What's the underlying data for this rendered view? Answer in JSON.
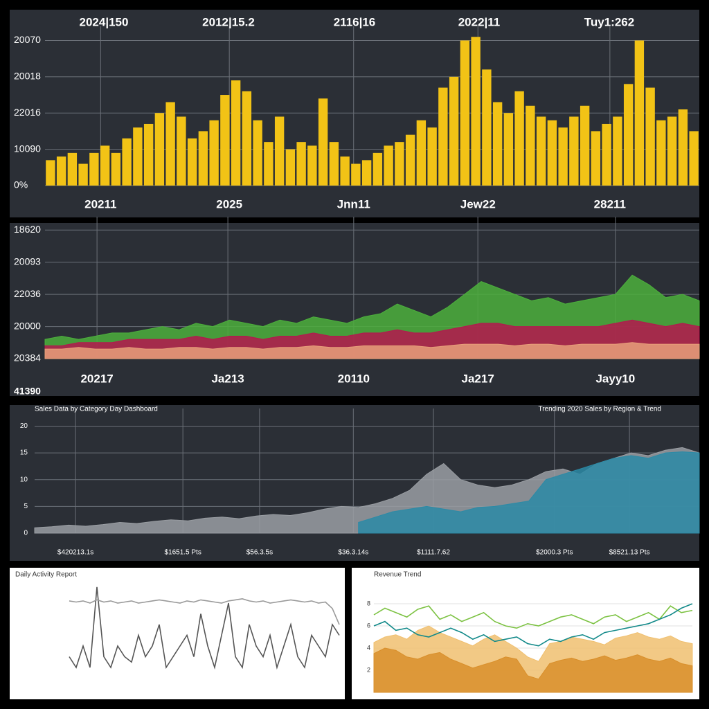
{
  "chart_data": [
    {
      "type": "bar",
      "color": "#f2c316",
      "grid": true,
      "annotations": [
        "2024|150",
        "2012|15.2",
        "2116|16",
        "2022|11",
        "Tuy1:262"
      ],
      "x": [
        0,
        1,
        2,
        3,
        4,
        5,
        6,
        7,
        8,
        9,
        10,
        11,
        12,
        13,
        14,
        15,
        16,
        17,
        18,
        19,
        20,
        21,
        22,
        23,
        24,
        25,
        26,
        27,
        28,
        29,
        30,
        31,
        32,
        33,
        34,
        35,
        36,
        37,
        38,
        39,
        40,
        41,
        42,
        43,
        44,
        45,
        46,
        47,
        48,
        49,
        50,
        51,
        52,
        53,
        54,
        55,
        56,
        57,
        58,
        59
      ],
      "values": [
        0.7,
        0.8,
        0.9,
        0.6,
        0.9,
        1.1,
        0.9,
        1.3,
        1.6,
        1.7,
        2.0,
        2.3,
        1.9,
        1.3,
        1.5,
        1.8,
        2.5,
        2.9,
        2.6,
        1.8,
        1.2,
        1.9,
        1.0,
        1.2,
        1.1,
        2.4,
        1.2,
        0.8,
        0.6,
        0.7,
        0.9,
        1.1,
        1.2,
        1.4,
        1.8,
        1.6,
        2.7,
        3.0,
        4.0,
        4.1,
        3.2,
        2.3,
        2.0,
        2.6,
        2.2,
        1.9,
        1.8,
        1.6,
        1.9,
        2.2,
        1.5,
        1.7,
        1.9,
        2.8,
        4.0,
        2.7,
        1.8,
        1.9,
        2.1,
        1.5
      ],
      "xlim": [
        -0.5,
        59.5
      ],
      "ylim": [
        0,
        4.2
      ],
      "xticks": [
        {
          "value": 4.6,
          "label": "20211"
        },
        {
          "value": 16.4,
          "label": "2025"
        },
        {
          "value": 27.8,
          "label": "Jnn11"
        },
        {
          "value": 39.2,
          "label": "Jew22"
        },
        {
          "value": 51.3,
          "label": "28211"
        }
      ],
      "yticks": [
        {
          "value": 0,
          "label": "0%"
        },
        {
          "value": 1,
          "label": "10090"
        },
        {
          "value": 2,
          "label": "22016"
        },
        {
          "value": 3,
          "label": "20018"
        },
        {
          "value": 4,
          "label": "20070"
        }
      ]
    },
    {
      "type": "area",
      "grid": true,
      "annotations": [
        "41390"
      ],
      "x": [
        0,
        1,
        2,
        3,
        4,
        5,
        6,
        7,
        8,
        9,
        10,
        11,
        12,
        13,
        14,
        15,
        16,
        17,
        18,
        19,
        20,
        21,
        22,
        23,
        24,
        25,
        26,
        27,
        28,
        29,
        30,
        31,
        32,
        33,
        34,
        35,
        36,
        37,
        38,
        39
      ],
      "series": [
        {
          "color": "#4caf3c",
          "values": [
            0.6,
            0.7,
            0.6,
            0.7,
            0.8,
            0.8,
            0.9,
            1.0,
            0.9,
            1.1,
            1.0,
            1.2,
            1.1,
            1.0,
            1.2,
            1.1,
            1.3,
            1.2,
            1.1,
            1.3,
            1.4,
            1.7,
            1.5,
            1.3,
            1.6,
            2.0,
            2.4,
            2.2,
            2.0,
            1.8,
            1.9,
            1.7,
            1.8,
            1.9,
            2.0,
            2.6,
            2.3,
            1.9,
            2.0,
            1.8
          ]
        },
        {
          "color": "#b5174f",
          "values": [
            0.4,
            0.4,
            0.5,
            0.5,
            0.5,
            0.6,
            0.6,
            0.6,
            0.6,
            0.7,
            0.6,
            0.7,
            0.7,
            0.6,
            0.7,
            0.7,
            0.8,
            0.7,
            0.7,
            0.8,
            0.8,
            0.9,
            0.8,
            0.8,
            0.9,
            1.0,
            1.1,
            1.1,
            1.0,
            1.0,
            1.0,
            1.0,
            1.0,
            1.0,
            1.1,
            1.2,
            1.1,
            1.0,
            1.1,
            1.0
          ]
        },
        {
          "color": "#e8a07a",
          "values": [
            0.3,
            0.3,
            0.35,
            0.3,
            0.3,
            0.35,
            0.3,
            0.3,
            0.35,
            0.35,
            0.3,
            0.35,
            0.35,
            0.3,
            0.35,
            0.35,
            0.4,
            0.35,
            0.35,
            0.4,
            0.4,
            0.4,
            0.4,
            0.35,
            0.4,
            0.45,
            0.45,
            0.45,
            0.4,
            0.45,
            0.45,
            0.4,
            0.45,
            0.45,
            0.45,
            0.5,
            0.45,
            0.45,
            0.45,
            0.45
          ]
        }
      ],
      "xlim": [
        0,
        39
      ],
      "ylim": [
        0,
        4.2
      ],
      "xticks": [
        {
          "value": 3.1,
          "label": "20217"
        },
        {
          "value": 10.9,
          "label": "Ja213"
        },
        {
          "value": 18.4,
          "label": "20110"
        },
        {
          "value": 25.8,
          "label": "Ja217"
        },
        {
          "value": 34.0,
          "label": "Jayy10"
        }
      ],
      "yticks": [
        {
          "value": 0,
          "label": "20384"
        },
        {
          "value": 1,
          "label": "20000"
        },
        {
          "value": 2,
          "label": "22036"
        },
        {
          "value": 3,
          "label": "20093"
        },
        {
          "value": 4,
          "label": "18620"
        }
      ]
    },
    {
      "type": "area",
      "grid": true,
      "annotations": [
        "Sales Data by Category Day Dashboard",
        "Trending 2020 Sales by Region & Trend"
      ],
      "x": [
        0,
        1,
        2,
        3,
        4,
        5,
        6,
        7,
        8,
        9,
        10,
        11,
        12,
        13,
        14,
        15,
        16,
        17,
        18,
        19,
        20,
        21,
        22,
        23,
        24,
        25,
        26,
        27,
        28,
        29,
        30,
        31,
        32,
        33,
        34,
        35,
        36,
        37,
        38,
        39
      ],
      "series": [
        {
          "color": "#9a9ea3",
          "values": [
            1,
            1.2,
            1.5,
            1.3,
            1.6,
            2,
            1.8,
            2.2,
            2.5,
            2.3,
            2.8,
            3,
            2.7,
            3.2,
            3.5,
            3.3,
            3.8,
            4.5,
            5,
            4.8,
            5.5,
            6.5,
            8,
            11,
            13,
            10,
            9,
            8.5,
            9,
            10,
            11.5,
            12,
            11,
            13,
            14,
            15,
            14.5,
            15.5,
            16,
            15
          ]
        },
        {
          "color": "#2c8aa6",
          "values": [
            null,
            null,
            null,
            null,
            null,
            null,
            null,
            null,
            null,
            null,
            null,
            null,
            null,
            null,
            null,
            null,
            null,
            null,
            null,
            2,
            3,
            4,
            4.5,
            5,
            4.5,
            4,
            4.8,
            5,
            5.5,
            6,
            10,
            11,
            12,
            13,
            14,
            14.5,
            14,
            15,
            15.2,
            15
          ]
        }
      ],
      "xlim": [
        0,
        39
      ],
      "ylim": [
        0,
        22
      ],
      "xticks": [
        {
          "value": 2.4,
          "label": "$420213.1s"
        },
        {
          "value": 8.7,
          "label": "$1651.5 Pts"
        },
        {
          "value": 13.2,
          "label": "$56.3.5s"
        },
        {
          "value": 18.7,
          "label": "$36.3.14s"
        },
        {
          "value": 23.4,
          "label": "$1111.7.62"
        },
        {
          "value": 30.5,
          "label": "$2000.3 Pts"
        },
        {
          "value": 34.9,
          "label": "$8521.13 Pts"
        }
      ],
      "yticks": [
        0,
        5,
        10,
        15,
        20
      ]
    },
    {
      "type": "line",
      "grid": true,
      "annotations": [
        "Daily Activity Report"
      ],
      "x": [
        0,
        1,
        2,
        3,
        4,
        5,
        6,
        7,
        8,
        9,
        10,
        11,
        12,
        13,
        14,
        15,
        16,
        17,
        18,
        19,
        20,
        21,
        22,
        23,
        24,
        25,
        26,
        27,
        28,
        29,
        30,
        31,
        32,
        33,
        34,
        35,
        36,
        37,
        38,
        39
      ],
      "series": [
        {
          "color": "#555555",
          "values": [
            3,
            2,
            4,
            2,
            9.5,
            3,
            2,
            4,
            3,
            2.5,
            5,
            3,
            4,
            6,
            2,
            3,
            4,
            5,
            3,
            7,
            4,
            2,
            5,
            8,
            3,
            2,
            6,
            4,
            3,
            5,
            2,
            4,
            6,
            3,
            2,
            5,
            4,
            3,
            6,
            5
          ]
        },
        {
          "color": "#999999",
          "values": [
            8.2,
            8.1,
            8.2,
            8.0,
            8.3,
            8.1,
            8.2,
            8.0,
            8.1,
            8.2,
            8.0,
            8.1,
            8.2,
            8.3,
            8.2,
            8.1,
            8.0,
            8.2,
            8.1,
            8.3,
            8.2,
            8.1,
            8.0,
            8.2,
            8.3,
            8.4,
            8.2,
            8.1,
            8.2,
            8.0,
            8.1,
            8.2,
            8.3,
            8.2,
            8.1,
            8.2,
            8.0,
            8.1,
            7.5,
            6.0
          ]
        }
      ],
      "xlim": [
        0,
        39
      ],
      "ylim": [
        0,
        10
      ]
    },
    {
      "type": "line",
      "grid": true,
      "annotations": [
        "Revenue Trend"
      ],
      "x": [
        0,
        1,
        2,
        3,
        4,
        5,
        6,
        7,
        8,
        9,
        10,
        11,
        12,
        13,
        14,
        15,
        16,
        17,
        18,
        19,
        20,
        21,
        22,
        23,
        24,
        25,
        26,
        27,
        28,
        29
      ],
      "series": [
        {
          "color": "#f0c070",
          "kind": "area",
          "values": [
            4.5,
            5,
            5.2,
            4.8,
            5.6,
            6,
            5.4,
            5,
            4.6,
            4.2,
            4.8,
            5.2,
            4.6,
            4,
            3.2,
            2.8,
            4.4,
            4.6,
            5,
            4.8,
            4.6,
            4.3,
            4.9,
            5.1,
            5.4,
            5,
            4.8,
            5.1,
            4.6,
            4.4
          ]
        },
        {
          "color": "#d98f2b",
          "kind": "area",
          "values": [
            3.5,
            4,
            3.8,
            3.2,
            3,
            3.4,
            3.6,
            3,
            2.6,
            2.2,
            2.5,
            2.8,
            3.2,
            3,
            1.5,
            1.2,
            2.6,
            2.9,
            3.1,
            2.8,
            3,
            3.3,
            2.9,
            3.1,
            3.4,
            3,
            2.8,
            3.1,
            2.6,
            2.4
          ]
        },
        {
          "color": "#7cc242",
          "kind": "line",
          "values": [
            7,
            7.6,
            7.2,
            6.8,
            7.5,
            7.8,
            6.6,
            7,
            6.4,
            6.8,
            7.2,
            6.4,
            6,
            5.8,
            6.2,
            6,
            6.4,
            6.8,
            7,
            6.6,
            6.2,
            6.8,
            7,
            6.4,
            6.8,
            7.2,
            6.6,
            7.8,
            7.2,
            7.4
          ]
        },
        {
          "color": "#138a8a",
          "kind": "line",
          "values": [
            6,
            6.4,
            5.6,
            5.8,
            5.2,
            5,
            5.4,
            5.8,
            5.4,
            4.8,
            5.2,
            4.6,
            4.8,
            5,
            4.4,
            4.2,
            4.8,
            4.6,
            5,
            5.2,
            4.8,
            5.4,
            5.6,
            5.8,
            6,
            6.2,
            6.6,
            7,
            7.6,
            8
          ]
        }
      ],
      "xlim": [
        0,
        29
      ],
      "ylim": [
        0,
        10
      ],
      "yticks": [
        2,
        4,
        6,
        8
      ]
    }
  ]
}
